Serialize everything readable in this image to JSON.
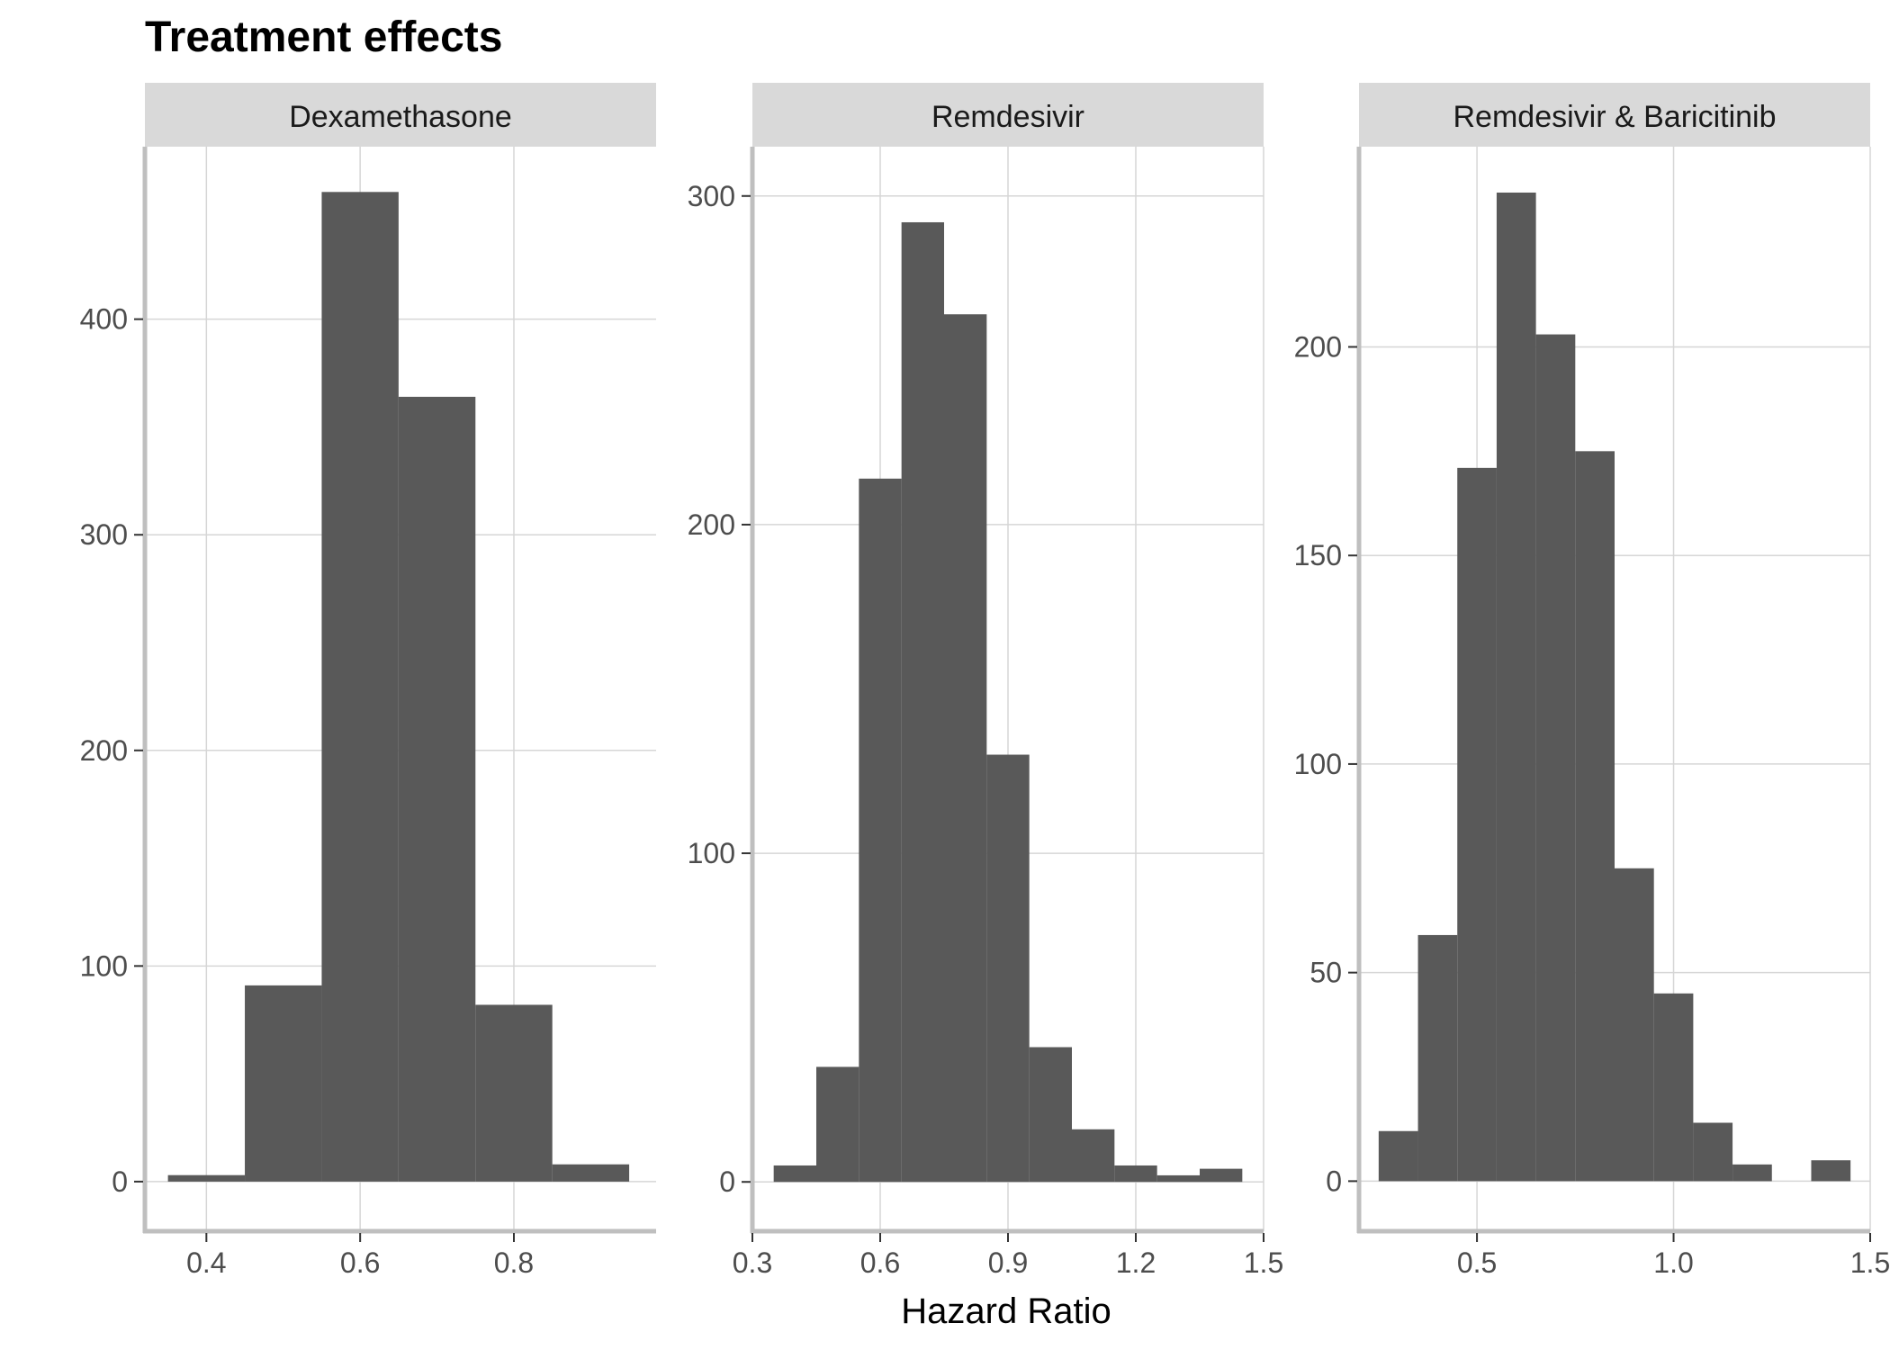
{
  "colors": {
    "bar": "#595959",
    "strip_background": "#d9d9d9",
    "grid": "#d6d6d6",
    "axis_line": "#bfbfbf",
    "tick": "#333333"
  },
  "chart_data": {
    "type": "bar",
    "title": "Treatment effects",
    "xlabel": "Hazard Ratio",
    "ylabel": "",
    "grid": true,
    "legend": "none",
    "panels": [
      {
        "name": "Dexamethasone",
        "xlim": [
          0.32,
          0.985
        ],
        "ylim": [
          -23,
          480
        ],
        "xticks": [
          0.4,
          0.6,
          0.8
        ],
        "xtick_labels": [
          "0.4",
          "0.6",
          "0.8"
        ],
        "yticks": [
          0,
          100,
          200,
          300,
          400
        ],
        "ytick_labels": [
          "0",
          "100",
          "200",
          "300",
          "400"
        ],
        "bin_width": 0.1,
        "bin_centers": [
          0.4,
          0.5,
          0.6,
          0.7,
          0.8,
          0.9
        ],
        "counts": [
          3,
          91,
          459,
          364,
          82,
          8
        ]
      },
      {
        "name": "Remdesivir",
        "xlim": [
          0.3,
          1.5
        ],
        "ylim": [
          -15,
          315
        ],
        "xticks": [
          0.3,
          0.6,
          0.9,
          1.2,
          1.5
        ],
        "xtick_labels": [
          "0.3",
          "0.6",
          "0.9",
          "1.2",
          "1.5"
        ],
        "yticks": [
          0,
          100,
          200,
          300
        ],
        "ytick_labels": [
          "0",
          "100",
          "200",
          "300"
        ],
        "bin_width": 0.1,
        "bin_centers": [
          0.4,
          0.5,
          0.6,
          0.7,
          0.8,
          0.9,
          1.0,
          1.1,
          1.2,
          1.3,
          1.4
        ],
        "counts": [
          5,
          35,
          214,
          292,
          264,
          130,
          41,
          16,
          5,
          2,
          4
        ]
      },
      {
        "name": "Remdesivir & Baricitinib",
        "xlim": [
          0.2,
          1.5
        ],
        "ylim": [
          -12,
          248
        ],
        "xticks": [
          0.5,
          1.0,
          1.5
        ],
        "xtick_labels": [
          "0.5",
          "1.0",
          "1.5"
        ],
        "yticks": [
          0,
          50,
          100,
          150,
          200
        ],
        "ytick_labels": [
          "0",
          "50",
          "100",
          "150",
          "200"
        ],
        "bin_width": 0.1,
        "bin_centers": [
          0.3,
          0.4,
          0.5,
          0.6,
          0.7,
          0.8,
          0.9,
          1.0,
          1.1,
          1.2,
          1.3,
          1.4
        ],
        "counts": [
          12,
          59,
          171,
          237,
          203,
          175,
          75,
          45,
          14,
          4,
          0,
          5
        ]
      }
    ]
  }
}
